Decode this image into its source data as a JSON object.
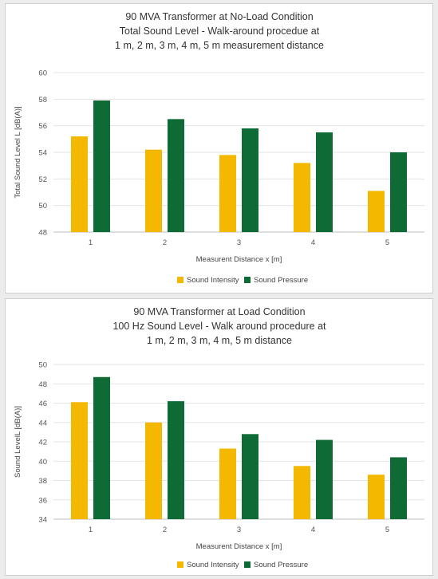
{
  "chart_data": [
    {
      "type": "bar",
      "title_lines": [
        "90 MVA Transformer at No-Load Condition",
        "Total Sound Level - Walk-around procedue at",
        "1 m, 2 m, 3 m, 4 m, 5 m measurement distance"
      ],
      "xlabel": "Measurent Distance x [m]",
      "ylabel": "Total Sound Level L [dB(A)]",
      "categories": [
        "1",
        "2",
        "3",
        "4",
        "5"
      ],
      "ylim": [
        48,
        60
      ],
      "yticks": [
        "48",
        "50",
        "52",
        "54",
        "56",
        "58",
        "60"
      ],
      "series": [
        {
          "name": "Sound Intensity",
          "color": "#f5b800",
          "values": [
            55.2,
            54.2,
            53.8,
            53.2,
            51.1
          ]
        },
        {
          "name": "Sound Pressure",
          "color": "#0f6b35",
          "values": [
            57.9,
            56.5,
            55.8,
            55.5,
            54.0
          ]
        }
      ],
      "grid": true,
      "legend": "bottom"
    },
    {
      "type": "bar",
      "title_lines": [
        "90 MVA Transformer at Load Condition",
        "100 Hz Sound Level - Walk around procedure at",
        "1 m, 2 m, 3 m, 4 m, 5 m distance"
      ],
      "xlabel": "Measurent Distance x [m]",
      "ylabel": "Sound LevelL [dB(A)]",
      "categories": [
        "1",
        "2",
        "3",
        "4",
        "5"
      ],
      "ylim": [
        34,
        50
      ],
      "yticks": [
        "34",
        "36",
        "38",
        "40",
        "42",
        "44",
        "46",
        "48",
        "50"
      ],
      "series": [
        {
          "name": "Sound Intensity",
          "color": "#f5b800",
          "values": [
            46.1,
            44.0,
            41.3,
            39.5,
            38.6
          ]
        },
        {
          "name": "Sound Pressure",
          "color": "#0f6b35",
          "values": [
            48.7,
            46.2,
            42.8,
            42.2,
            40.4
          ]
        }
      ],
      "grid": true,
      "legend": "bottom"
    }
  ]
}
